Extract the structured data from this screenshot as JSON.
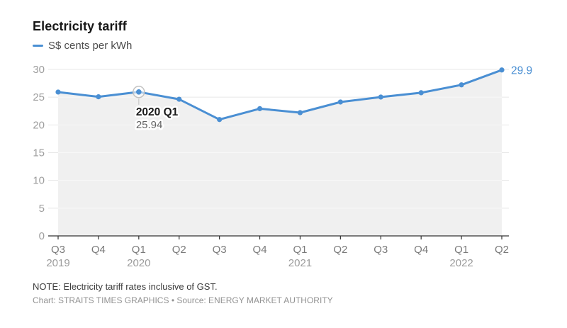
{
  "header": {
    "title": "Electricity tariff",
    "legend_label": "S$ cents per kWh"
  },
  "colors": {
    "line": "#4a8fd3",
    "area": "#f0f0f0",
    "grid_outside": "#e7e7e7",
    "grid_inside": "#f8f8f8",
    "axis": "#333333",
    "y_label": "#9e9e9e",
    "x_label": "#7a7a7a",
    "year_label": "#9b9b9b",
    "tooltip_title": "#1a1a1a",
    "tooltip_value": "#636363",
    "halo_stroke": "#c2c2c2",
    "connector": "#c9c9c9",
    "end_label": "#4a8fd3"
  },
  "chart_data": {
    "type": "line",
    "title": "Electricity tariff",
    "x": [
      "Q3 2019",
      "Q4 2019",
      "Q1 2020",
      "Q2 2020",
      "Q3 2020",
      "Q4 2020",
      "Q1 2021",
      "Q2 2021",
      "Q3 2021",
      "Q4 2021",
      "Q1 2022",
      "Q2 2022"
    ],
    "x_tick_labels": [
      "Q3",
      "Q4",
      "Q1",
      "Q2",
      "Q3",
      "Q4",
      "Q1",
      "Q2",
      "Q3",
      "Q4",
      "Q1",
      "Q2"
    ],
    "year_labels": [
      {
        "text": "2019",
        "index": 0
      },
      {
        "text": "2020",
        "index": 2
      },
      {
        "text": "2021",
        "index": 6
      },
      {
        "text": "2022",
        "index": 10
      }
    ],
    "series": [
      {
        "name": "S$ cents per kWh",
        "values": [
          25.92,
          25.07,
          25.94,
          24.63,
          20.97,
          22.93,
          22.21,
          24.13,
          25.02,
          25.8,
          27.22,
          29.9
        ]
      }
    ],
    "ylim": [
      0,
      30
    ],
    "y_ticks": [
      0,
      5,
      10,
      15,
      20,
      25,
      30
    ],
    "grid": true,
    "legend_position": "top-left",
    "annotations": {
      "tooltip": {
        "index": 2,
        "title": "2020 Q1",
        "value": "25.94"
      },
      "end_label": {
        "index": 11,
        "text": "29.9"
      }
    }
  },
  "footer": {
    "note": "NOTE: Electricity tariff rates inclusive of GST.",
    "credit": "Chart: STRAITS TIMES GRAPHICS • Source: ENERGY MARKET AUTHORITY"
  }
}
